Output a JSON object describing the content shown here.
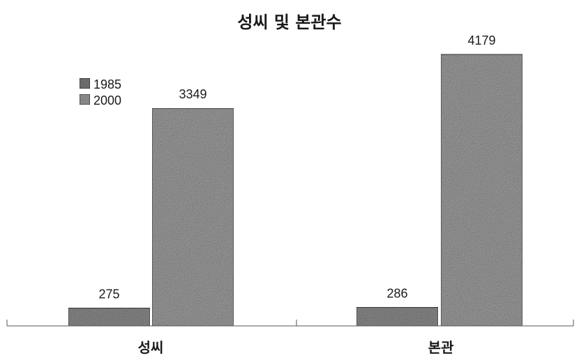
{
  "chart_data": {
    "type": "bar",
    "title": "성씨 및 본관수",
    "categories": [
      "성씨",
      "본관"
    ],
    "series": [
      {
        "name": "1985",
        "values": [
          275,
          286
        ],
        "color": "#8a8a8a"
      },
      {
        "name": "2000",
        "values": [
          3349,
          4179
        ],
        "color": "#9c9c9c"
      }
    ],
    "ylim": [
      0,
      4500
    ],
    "grid": false,
    "legend_position": "top-left"
  }
}
